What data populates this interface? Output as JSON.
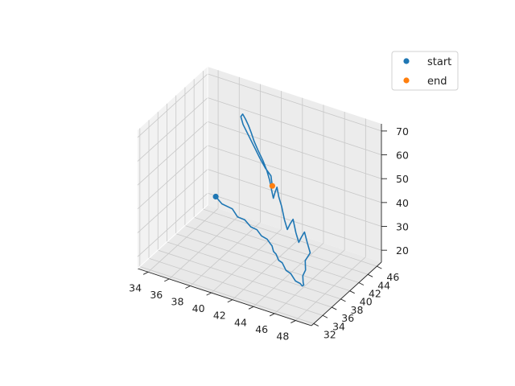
{
  "chart_data": {
    "type": "line",
    "projection": "3d",
    "title": "",
    "xlabel": "",
    "ylabel": "",
    "zlabel": "",
    "xlim": [
      33,
      49.5
    ],
    "ylim": [
      31.5,
      47
    ],
    "zlim": [
      15,
      73
    ],
    "x_ticks": [
      "34",
      "36",
      "38",
      "40",
      "42",
      "44",
      "46",
      "48"
    ],
    "y_ticks": [
      "32",
      "34",
      "36",
      "38",
      "40",
      "42",
      "44",
      "46"
    ],
    "z_ticks": [
      "20",
      "30",
      "40",
      "50",
      "60",
      "70"
    ],
    "grid": true,
    "legend_position": "top-right",
    "colors": {
      "path": "#1f77b4",
      "start": "#1f77b4",
      "end": "#ff7f0e"
    },
    "series": [
      {
        "name": "start",
        "kind": "point",
        "point": [
          34.2,
          46.0,
          22.0
        ]
      },
      {
        "name": "end",
        "kind": "point",
        "point": [
          43.0,
          38.0,
          53.0
        ]
      }
    ],
    "trajectory": [
      [
        34.2,
        46.0,
        22.0
      ],
      [
        35.0,
        45.5,
        21.0
      ],
      [
        36.2,
        45.0,
        21.5
      ],
      [
        37.0,
        44.3,
        20.5
      ],
      [
        37.8,
        44.0,
        21.0
      ],
      [
        38.6,
        43.5,
        20.0
      ],
      [
        39.4,
        43.0,
        20.8
      ],
      [
        40.0,
        42.6,
        19.8
      ],
      [
        40.8,
        42.0,
        20.6
      ],
      [
        41.2,
        41.8,
        19.5
      ],
      [
        41.6,
        41.2,
        20.4
      ],
      [
        42.0,
        40.6,
        19.6
      ],
      [
        42.5,
        40.0,
        20.2
      ],
      [
        43.0,
        39.4,
        19.4
      ],
      [
        43.6,
        38.8,
        20.3
      ],
      [
        44.3,
        38.0,
        19.5
      ],
      [
        45.0,
        37.4,
        20.2
      ],
      [
        45.8,
        36.6,
        19.6
      ],
      [
        46.5,
        36.0,
        20.6
      ],
      [
        47.0,
        35.3,
        21.5
      ],
      [
        47.4,
        34.7,
        23.5
      ],
      [
        47.6,
        34.1,
        26.0
      ],
      [
        47.8,
        33.6,
        28.5
      ],
      [
        48.0,
        33.1,
        31.0
      ],
      [
        48.3,
        33.0,
        34.0
      ],
      [
        48.1,
        33.4,
        37.0
      ],
      [
        48.4,
        33.8,
        40.0
      ],
      [
        48.0,
        34.1,
        43.0
      ],
      [
        47.6,
        34.4,
        46.5
      ],
      [
        47.2,
        34.7,
        43.5
      ],
      [
        46.8,
        35.0,
        40.0
      ],
      [
        46.4,
        35.3,
        43.0
      ],
      [
        46.0,
        35.6,
        47.5
      ],
      [
        45.6,
        35.9,
        44.5
      ],
      [
        45.2,
        36.2,
        41.0
      ],
      [
        44.8,
        36.5,
        44.0
      ],
      [
        44.4,
        36.8,
        48.5
      ],
      [
        44.0,
        37.1,
        51.5
      ],
      [
        43.7,
        37.4,
        54.5
      ],
      [
        43.4,
        37.7,
        51.5
      ],
      [
        43.1,
        38.0,
        48.0
      ],
      [
        42.8,
        38.3,
        50.5
      ],
      [
        42.5,
        38.6,
        53.5
      ],
      [
        42.1,
        38.9,
        56.5
      ],
      [
        41.6,
        39.2,
        59.5
      ],
      [
        41.0,
        39.5,
        62.5
      ],
      [
        40.5,
        39.8,
        65.0
      ],
      [
        40.1,
        40.1,
        67.5
      ],
      [
        39.7,
        40.4,
        69.5
      ],
      [
        39.3,
        40.7,
        71.0
      ],
      [
        38.9,
        41.0,
        72.0
      ],
      [
        38.6,
        41.3,
        70.0
      ],
      [
        38.9,
        41.1,
        67.5
      ],
      [
        39.6,
        40.7,
        64.5
      ],
      [
        40.3,
        40.3,
        61.5
      ],
      [
        41.0,
        39.9,
        58.5
      ],
      [
        41.7,
        39.5,
        56.0
      ],
      [
        42.4,
        39.1,
        54.5
      ],
      [
        43.0,
        38.0,
        53.0
      ]
    ]
  }
}
